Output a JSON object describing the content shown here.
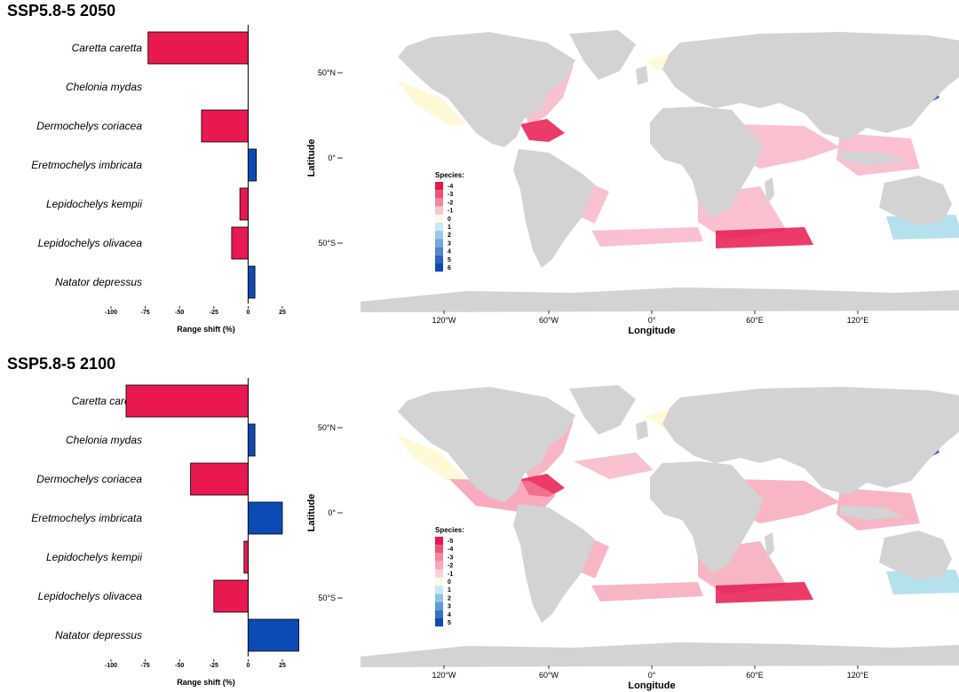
{
  "colors": {
    "negative_bar": "#e8194f",
    "positive_bar": "#0b4bb3",
    "land": "#d3d3d3",
    "ocean": "#ffffff",
    "loss_strong": "#e8194f",
    "loss_light": "#f8b6c8",
    "neutral": "#fff8d0",
    "gain_light": "#a8dcea",
    "gain_strong": "#0b4bb3"
  },
  "chart_data": [
    {
      "type": "bar",
      "orientation": "horizontal",
      "title": "SSP5.8-5 2050",
      "categories": [
        "Caretta caretta",
        "Chelonia mydas",
        "Dermochelys coriacea",
        "Eretmochelys imbricata",
        "Lepidochelys kempii",
        "Lepidochelys olivacea",
        "Natator depressus"
      ],
      "values": [
        -73,
        0,
        -34,
        6,
        -6,
        -12,
        5
      ],
      "xlabel": "Range shift (%)",
      "xlim": [
        -100,
        30
      ],
      "xticks": [
        "-100",
        "-75",
        "-50",
        "-25",
        "0",
        "25"
      ]
    },
    {
      "type": "bar",
      "orientation": "horizontal",
      "title": "SSP5.8-5 2100",
      "categories": [
        "Caretta caretta",
        "Chelonia mydas",
        "Dermochelys coriacea",
        "Eretmochelys imbricata",
        "Lepidochelys kempii",
        "Lepidochelys olivacea",
        "Natator depressus"
      ],
      "values": [
        -89,
        5,
        -42,
        25,
        -3,
        -25,
        37
      ],
      "xlabel": "Range shift (%)",
      "xlim": [
        -100,
        38
      ],
      "xticks": [
        "-100",
        "-75",
        "-50",
        "-25",
        "0",
        "25"
      ]
    }
  ],
  "maps": [
    {
      "xlabel": "Longitude",
      "ylabel": "Latitude",
      "xticks": [
        "120°W",
        "60°W",
        "0°",
        "60°E",
        "120°E"
      ],
      "yticks": [
        "50°N",
        "0°",
        "50°S"
      ],
      "legend_title": "Species:",
      "legend": [
        {
          "label": "-4",
          "color": "#e8194f"
        },
        {
          "label": "-3",
          "color": "#ef5478"
        },
        {
          "label": "-2",
          "color": "#f4879f"
        },
        {
          "label": "-1",
          "color": "#f9c3d0"
        },
        {
          "label": "0",
          "color": "#fdfbe4"
        },
        {
          "label": "1",
          "color": "#c6ecf3"
        },
        {
          "label": "2",
          "color": "#97cce8"
        },
        {
          "label": "3",
          "color": "#6fa8de"
        },
        {
          "label": "4",
          "color": "#4e86d0"
        },
        {
          "label": "5",
          "color": "#2c62c2"
        },
        {
          "label": "6",
          "color": "#0b4bb3"
        }
      ],
      "emphasis": "loss"
    },
    {
      "xlabel": "Longitude",
      "ylabel": "Latitude",
      "xticks": [
        "120°W",
        "60°W",
        "0°",
        "60°E",
        "120°E"
      ],
      "yticks": [
        "50°N",
        "0°",
        "50°S"
      ],
      "legend_title": "Species:",
      "legend": [
        {
          "label": "-5",
          "color": "#e8194f"
        },
        {
          "label": "-4",
          "color": "#ef5478"
        },
        {
          "label": "-3",
          "color": "#f4879f"
        },
        {
          "label": "-2",
          "color": "#f7a8ba"
        },
        {
          "label": "-1",
          "color": "#fad1db"
        },
        {
          "label": "0",
          "color": "#fdfbe4"
        },
        {
          "label": "1",
          "color": "#c6ecf3"
        },
        {
          "label": "2",
          "color": "#8fc4e6"
        },
        {
          "label": "3",
          "color": "#5f97d8"
        },
        {
          "label": "4",
          "color": "#3670c8"
        },
        {
          "label": "5",
          "color": "#0b4bb3"
        }
      ],
      "emphasis": "mixed"
    }
  ]
}
